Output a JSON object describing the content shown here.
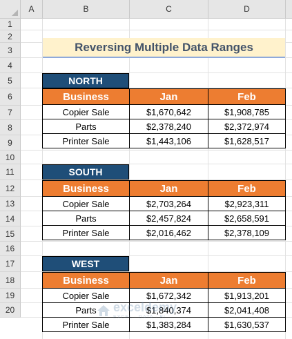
{
  "columns": [
    "A",
    "B",
    "C",
    "D"
  ],
  "rows": [
    "1",
    "2",
    "3",
    "4",
    "5",
    "6",
    "7",
    "8",
    "9",
    "10",
    "11",
    "12",
    "13",
    "14",
    "15",
    "16",
    "17",
    "18",
    "19",
    "20"
  ],
  "title": "Reversing Multiple Data Ranges",
  "tables": [
    {
      "region": "NORTH",
      "headers": [
        "Business",
        "Jan",
        "Feb"
      ],
      "rows": [
        {
          "business": "Copier Sale",
          "jan": "$1,670,642",
          "feb": "$1,908,785"
        },
        {
          "business": "Parts",
          "jan": "$2,378,240",
          "feb": "$2,372,974"
        },
        {
          "business": "Printer Sale",
          "jan": "$1,443,106",
          "feb": "$1,628,517"
        }
      ]
    },
    {
      "region": "SOUTH",
      "headers": [
        "Business",
        "Jan",
        "Feb"
      ],
      "rows": [
        {
          "business": "Copier Sale",
          "jan": "$2,703,264",
          "feb": "$2,923,311"
        },
        {
          "business": "Parts",
          "jan": "$2,457,824",
          "feb": "$2,658,591"
        },
        {
          "business": "Printer Sale",
          "jan": "$2,016,462",
          "feb": "$2,378,109"
        }
      ]
    },
    {
      "region": "WEST",
      "headers": [
        "Business",
        "Jan",
        "Feb"
      ],
      "rows": [
        {
          "business": "Copier Sale",
          "jan": "$1,672,342",
          "feb": "$1,913,201"
        },
        {
          "business": "Parts",
          "jan": "$1,840,374",
          "feb": "$2,041,408"
        },
        {
          "business": "Printer Sale",
          "jan": "$1,383,284",
          "feb": "$1,630,537"
        }
      ]
    }
  ],
  "watermark": {
    "name": "exceldemy",
    "tagline": "EXCEL · DATA · BI",
    "icon": "house-logo-icon"
  }
}
